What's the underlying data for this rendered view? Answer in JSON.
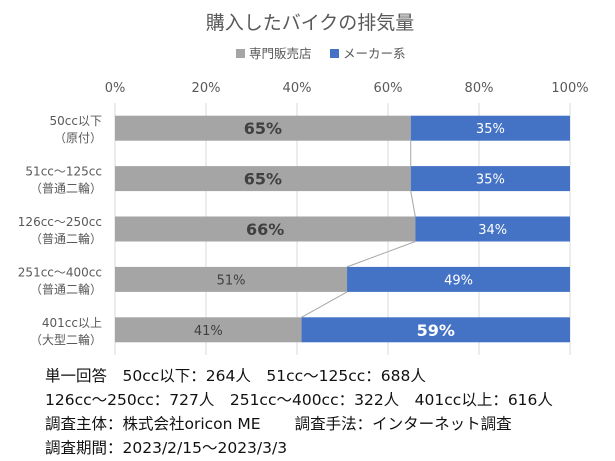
{
  "chart_data": {
    "type": "bar",
    "orientation": "horizontal",
    "stacked": "percent",
    "title": "購入したバイクの排気量",
    "legend": {
      "placement": "top",
      "entries": [
        "専門販売店",
        "メーカー系"
      ]
    },
    "xaxis": {
      "ticks": [
        "0%",
        "20%",
        "40%",
        "60%",
        "80%",
        "100%"
      ],
      "range": [
        0,
        100
      ],
      "grid": true
    },
    "categories": [
      [
        "50cc以下",
        "（原付）"
      ],
      [
        "51cc～125cc",
        "（普通二輪）"
      ],
      [
        "126cc～250cc",
        "（普通二輪）"
      ],
      [
        "251cc～400cc",
        "（普通二輪）"
      ],
      [
        "401cc以上",
        "（大型二輪）"
      ]
    ],
    "series": [
      {
        "name": "専門販売店",
        "color": "#a5a5a5",
        "values": [
          65,
          65,
          66,
          51,
          41
        ],
        "labels": [
          "65%",
          "65%",
          "66%",
          "51%",
          "41%"
        ],
        "emphasis": [
          true,
          true,
          true,
          false,
          false
        ]
      },
      {
        "name": "メーカー系",
        "color": "#4472c4",
        "values": [
          35,
          35,
          34,
          49,
          59
        ],
        "labels": [
          "35%",
          "35%",
          "34%",
          "49%",
          "59%"
        ],
        "emphasis": [
          false,
          false,
          false,
          false,
          true
        ]
      }
    ],
    "series_lines": true
  },
  "notes": {
    "line1": "単一回答　50cc以下：264人　51cc～125cc：688人",
    "line2": "126cc～250cc：727人　251cc～400cc：322人　401cc以上：616人",
    "line3a": "調査主体：株式会社oricon ME",
    "line3b": "調査手法：インターネット調査",
    "line4": "調査期間：2023/2/15～2023/3/3"
  }
}
